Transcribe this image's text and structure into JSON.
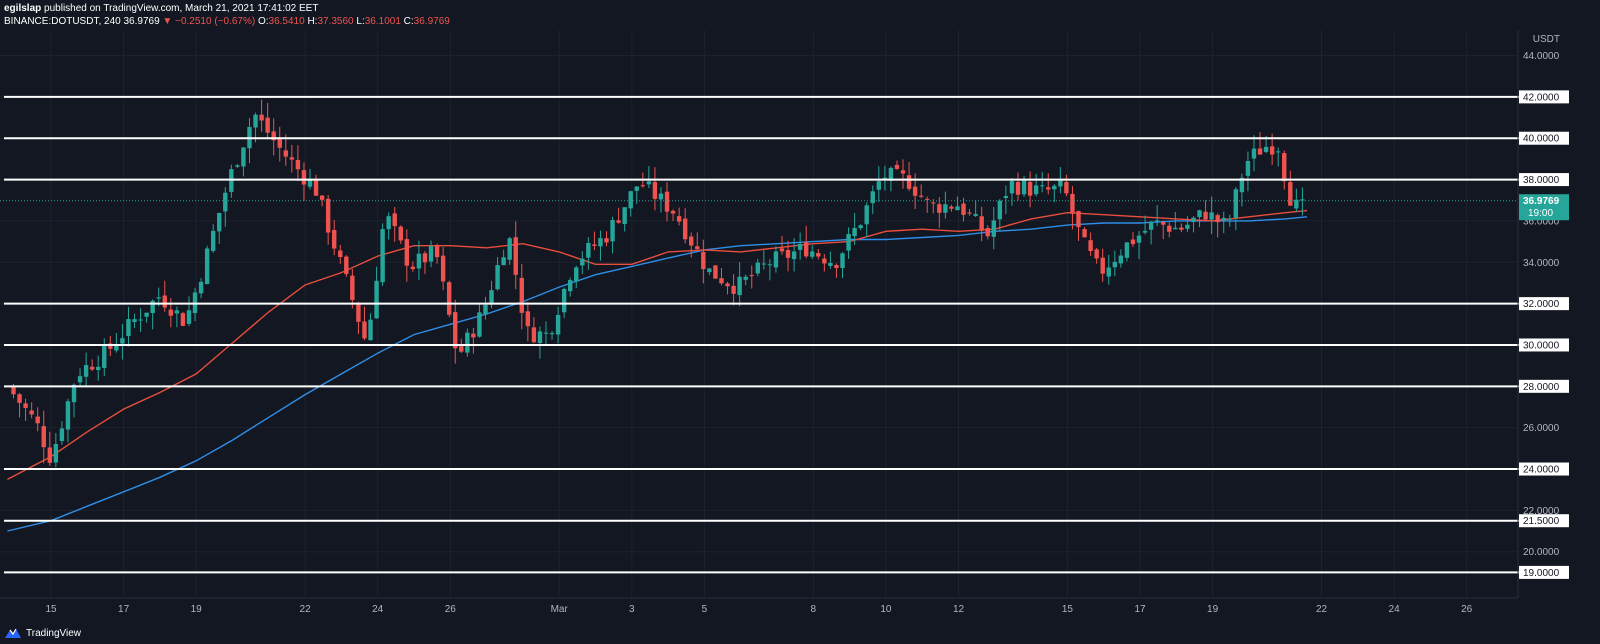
{
  "header": {
    "author": "egilslap",
    "published_text": "published on TradingView.com, March 21, 2021 17:41:02 EET",
    "symbol": "BINANCE:DOTUSDT, 240",
    "last": "36.9769",
    "change": "−0.2510 (−0.67%)",
    "o_label": "O:",
    "o_value": "36.5410",
    "h_label": "H:",
    "h_value": "37.3560",
    "l_label": "L:",
    "l_value": "36.1001",
    "c_label": "C:",
    "c_value": "36.9769"
  },
  "footer": {
    "brand": "TradingView",
    "icon": "tradingview-logo-icon"
  },
  "colors": {
    "background": "#131722",
    "grid": "#1e222d",
    "up": "#26a69a",
    "down": "#ef5350",
    "ma_red": "#e84d3d",
    "ma_blue": "#2f8fe8",
    "level": "#ffffff",
    "text": "#b2b5be",
    "price_tag": "#26a69a"
  },
  "chart_data": {
    "type": "candlestick",
    "currency": "USDT",
    "ylim": [
      18.6,
      45.2
    ],
    "y_ticks": [
      "20.0000",
      "22.0000",
      "24.0000",
      "26.0000",
      "28.0000",
      "30.0000",
      "32.0000",
      "34.0000",
      "36.0000",
      "38.0000",
      "40.0000",
      "42.0000",
      "44.0000"
    ],
    "x_ticks": [
      {
        "day": 0,
        "label": "15"
      },
      {
        "day": 2,
        "label": "17"
      },
      {
        "day": 4,
        "label": "19"
      },
      {
        "day": 7,
        "label": "22"
      },
      {
        "day": 9,
        "label": "24"
      },
      {
        "day": 11,
        "label": "26"
      },
      {
        "day": 14,
        "label": "Mar"
      },
      {
        "day": 16,
        "label": "3"
      },
      {
        "day": 18,
        "label": "5"
      },
      {
        "day": 21,
        "label": "8"
      },
      {
        "day": 23,
        "label": "10"
      },
      {
        "day": 25,
        "label": "12"
      },
      {
        "day": 28,
        "label": "15"
      },
      {
        "day": 30,
        "label": "17"
      },
      {
        "day": 32,
        "label": "19"
      },
      {
        "day": 35,
        "label": "22"
      },
      {
        "day": 37,
        "label": "24"
      },
      {
        "day": 39,
        "label": "26"
      }
    ],
    "horizontal_levels": [
      19.0,
      21.5,
      24.0,
      28.0,
      30.0,
      32.0,
      38.0,
      40.0,
      42.0
    ],
    "horizontal_level_labels": [
      "19.0000",
      "21.5000",
      "24.0000",
      "28.0000",
      "30.0000",
      "32.0000",
      "38.0000",
      "40.0000",
      "42.0000"
    ],
    "current_price": 36.9769,
    "current_price_label": "36.9769",
    "countdown_label": "19:00",
    "key_points": [
      {
        "day": -1.2,
        "price": 28.0
      },
      {
        "day": -0.4,
        "price": 26.2
      },
      {
        "day": 0.0,
        "price": 24.5
      },
      {
        "day": 0.7,
        "price": 28.6
      },
      {
        "day": 1.5,
        "price": 29.6
      },
      {
        "day": 2.3,
        "price": 31.2
      },
      {
        "day": 3.0,
        "price": 32.4
      },
      {
        "day": 3.7,
        "price": 31.1
      },
      {
        "day": 4.2,
        "price": 33.8
      },
      {
        "day": 4.9,
        "price": 38.0
      },
      {
        "day": 5.6,
        "price": 41.2
      },
      {
        "day": 6.3,
        "price": 39.5
      },
      {
        "day": 7.3,
        "price": 37.5
      },
      {
        "day": 8.3,
        "price": 32.2
      },
      {
        "day": 8.7,
        "price": 30.0
      },
      {
        "day": 9.2,
        "price": 36.4
      },
      {
        "day": 9.9,
        "price": 33.8
      },
      {
        "day": 10.6,
        "price": 34.5
      },
      {
        "day": 11.2,
        "price": 29.4
      },
      {
        "day": 11.9,
        "price": 31.6
      },
      {
        "day": 12.6,
        "price": 35.4
      },
      {
        "day": 13.1,
        "price": 30.6
      },
      {
        "day": 13.7,
        "price": 30.5
      },
      {
        "day": 14.4,
        "price": 34.0
      },
      {
        "day": 15.3,
        "price": 35.3
      },
      {
        "day": 16.2,
        "price": 37.9
      },
      {
        "day": 17.2,
        "price": 36.4
      },
      {
        "day": 18.1,
        "price": 33.6
      },
      {
        "day": 18.9,
        "price": 32.8
      },
      {
        "day": 19.8,
        "price": 34.0
      },
      {
        "day": 20.8,
        "price": 34.7
      },
      {
        "day": 21.6,
        "price": 34.0
      },
      {
        "day": 22.3,
        "price": 36.0
      },
      {
        "day": 22.9,
        "price": 38.2
      },
      {
        "day": 23.6,
        "price": 38.0
      },
      {
        "day": 24.2,
        "price": 36.7
      },
      {
        "day": 25.0,
        "price": 36.8
      },
      {
        "day": 25.8,
        "price": 35.3
      },
      {
        "day": 26.4,
        "price": 37.8
      },
      {
        "day": 27.3,
        "price": 37.4
      },
      {
        "day": 27.9,
        "price": 37.6
      },
      {
        "day": 28.4,
        "price": 35.0
      },
      {
        "day": 28.9,
        "price": 33.5
      },
      {
        "day": 29.6,
        "price": 34.8
      },
      {
        "day": 30.4,
        "price": 35.9
      },
      {
        "day": 31.1,
        "price": 35.6
      },
      {
        "day": 31.8,
        "price": 36.4
      },
      {
        "day": 32.4,
        "price": 35.7
      },
      {
        "day": 32.9,
        "price": 38.8
      },
      {
        "day": 33.4,
        "price": 39.6
      },
      {
        "day": 33.8,
        "price": 39.7
      },
      {
        "day": 34.1,
        "price": 37.3
      },
      {
        "day": 34.4,
        "price": 36.4
      },
      {
        "day": 34.6,
        "price": 36.98
      }
    ],
    "ma_red": [
      {
        "day": -1.2,
        "price": 23.5
      },
      {
        "day": 0.0,
        "price": 24.6
      },
      {
        "day": 1.0,
        "price": 25.8
      },
      {
        "day": 2.0,
        "price": 26.9
      },
      {
        "day": 3.0,
        "price": 27.7
      },
      {
        "day": 4.0,
        "price": 28.6
      },
      {
        "day": 5.0,
        "price": 30.1
      },
      {
        "day": 6.0,
        "price": 31.6
      },
      {
        "day": 7.0,
        "price": 32.9
      },
      {
        "day": 8.0,
        "price": 33.5
      },
      {
        "day": 9.0,
        "price": 34.3
      },
      {
        "day": 10.0,
        "price": 34.8
      },
      {
        "day": 11.0,
        "price": 34.8
      },
      {
        "day": 12.0,
        "price": 34.7
      },
      {
        "day": 13.0,
        "price": 34.9
      },
      {
        "day": 14.0,
        "price": 34.5
      },
      {
        "day": 15.0,
        "price": 33.9
      },
      {
        "day": 16.0,
        "price": 33.9
      },
      {
        "day": 17.0,
        "price": 34.5
      },
      {
        "day": 18.0,
        "price": 34.6
      },
      {
        "day": 19.0,
        "price": 34.5
      },
      {
        "day": 20.0,
        "price": 34.7
      },
      {
        "day": 21.0,
        "price": 34.9
      },
      {
        "day": 22.0,
        "price": 35.0
      },
      {
        "day": 23.0,
        "price": 35.5
      },
      {
        "day": 24.0,
        "price": 35.6
      },
      {
        "day": 25.0,
        "price": 35.5
      },
      {
        "day": 26.0,
        "price": 35.6
      },
      {
        "day": 27.0,
        "price": 36.1
      },
      {
        "day": 28.0,
        "price": 36.4
      },
      {
        "day": 29.0,
        "price": 36.3
      },
      {
        "day": 30.0,
        "price": 36.2
      },
      {
        "day": 31.0,
        "price": 36.1
      },
      {
        "day": 32.0,
        "price": 36.0
      },
      {
        "day": 33.0,
        "price": 36.2
      },
      {
        "day": 34.0,
        "price": 36.4
      },
      {
        "day": 34.6,
        "price": 36.5
      }
    ],
    "ma_blue": [
      {
        "day": -1.2,
        "price": 21.0
      },
      {
        "day": 0.0,
        "price": 21.5
      },
      {
        "day": 1.0,
        "price": 22.2
      },
      {
        "day": 2.0,
        "price": 22.9
      },
      {
        "day": 3.0,
        "price": 23.6
      },
      {
        "day": 4.0,
        "price": 24.4
      },
      {
        "day": 5.0,
        "price": 25.4
      },
      {
        "day": 6.0,
        "price": 26.5
      },
      {
        "day": 7.0,
        "price": 27.6
      },
      {
        "day": 8.0,
        "price": 28.6
      },
      {
        "day": 9.0,
        "price": 29.6
      },
      {
        "day": 10.0,
        "price": 30.5
      },
      {
        "day": 11.0,
        "price": 31.0
      },
      {
        "day": 12.0,
        "price": 31.5
      },
      {
        "day": 13.0,
        "price": 32.1
      },
      {
        "day": 14.0,
        "price": 32.8
      },
      {
        "day": 15.0,
        "price": 33.4
      },
      {
        "day": 16.0,
        "price": 33.8
      },
      {
        "day": 17.0,
        "price": 34.2
      },
      {
        "day": 18.0,
        "price": 34.6
      },
      {
        "day": 19.0,
        "price": 34.8
      },
      {
        "day": 20.0,
        "price": 34.9
      },
      {
        "day": 21.0,
        "price": 35.0
      },
      {
        "day": 22.0,
        "price": 35.1
      },
      {
        "day": 23.0,
        "price": 35.1
      },
      {
        "day": 24.0,
        "price": 35.2
      },
      {
        "day": 25.0,
        "price": 35.3
      },
      {
        "day": 26.0,
        "price": 35.5
      },
      {
        "day": 27.0,
        "price": 35.6
      },
      {
        "day": 28.0,
        "price": 35.8
      },
      {
        "day": 29.0,
        "price": 35.9
      },
      {
        "day": 30.0,
        "price": 35.9
      },
      {
        "day": 31.0,
        "price": 36.0
      },
      {
        "day": 32.0,
        "price": 36.0
      },
      {
        "day": 33.0,
        "price": 36.0
      },
      {
        "day": 34.0,
        "price": 36.1
      },
      {
        "day": 34.6,
        "price": 36.2
      }
    ]
  }
}
